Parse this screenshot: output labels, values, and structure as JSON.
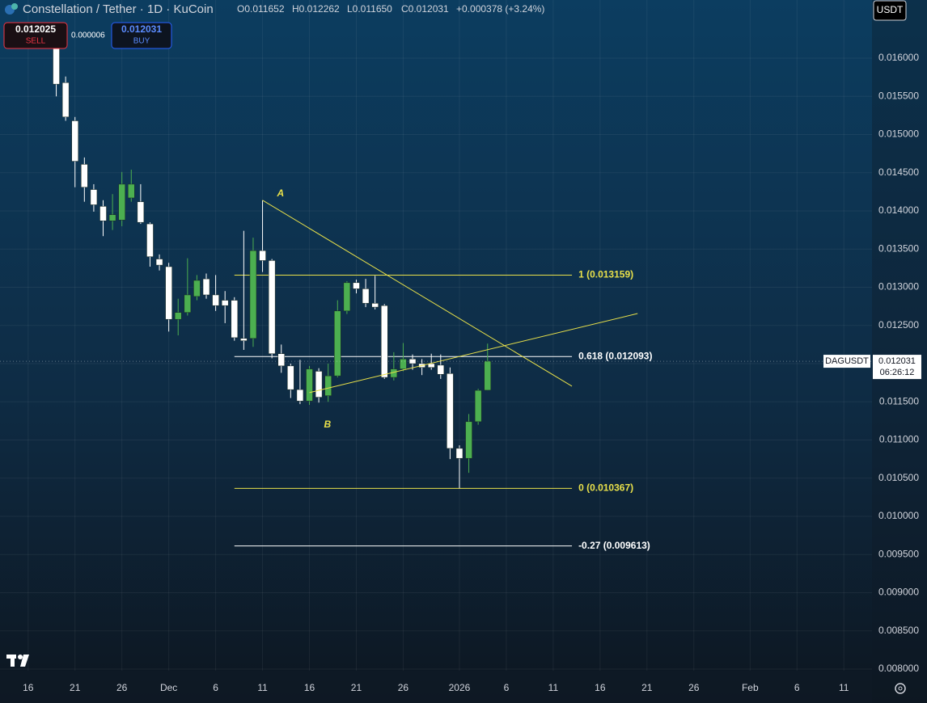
{
  "chart_data": {
    "type": "candlestick",
    "header": {
      "title": "Constellation / Tether · 1D · KuCoin",
      "open": "O0.011652",
      "high": "H0.012262",
      "low": "L0.011650",
      "close": "C0.012031",
      "change": "+0.000378 (+3.24%)"
    },
    "sell": {
      "value": 0.012025,
      "label": "0.012025",
      "text": "SELL"
    },
    "spread": {
      "value": 6e-06,
      "label": "0.000006"
    },
    "buy": {
      "value": 0.012031,
      "label": "0.012031",
      "text": "BUY"
    },
    "currency": "USDT",
    "symbol": "DAGUSDT",
    "last_price": {
      "value": 0.012031,
      "label": "0.012031"
    },
    "countdown": "06:26:12",
    "up_color": "#4caf50",
    "down_color": "#ffffff",
    "x": [
      "2025-11-19",
      "2025-11-20",
      "2025-11-21",
      "2025-11-22",
      "2025-11-23",
      "2025-11-24",
      "2025-11-25",
      "2025-11-26",
      "2025-11-27",
      "2025-11-28",
      "2025-11-29",
      "2025-11-30",
      "2025-12-01",
      "2025-12-02",
      "2025-12-03",
      "2025-12-04",
      "2025-12-05",
      "2025-12-06",
      "2025-12-07",
      "2025-12-08",
      "2025-12-09",
      "2025-12-10",
      "2025-12-11",
      "2025-12-12",
      "2025-12-13",
      "2025-12-14",
      "2025-12-15",
      "2025-12-16",
      "2025-12-17",
      "2025-12-18",
      "2025-12-19",
      "2025-12-20",
      "2025-12-21",
      "2025-12-22",
      "2025-12-23",
      "2025-12-24",
      "2025-12-25",
      "2025-12-26",
      "2025-12-27",
      "2025-12-28",
      "2025-12-29",
      "2025-12-30",
      "2025-12-31",
      "2026-01-01",
      "2026-01-02",
      "2026-01-03",
      "2026-01-04"
    ],
    "open": [
      0.01625,
      0.01568,
      0.01518,
      0.01461,
      0.01428,
      0.01406,
      0.01387,
      0.01388,
      0.01417,
      0.01412,
      0.01383,
      0.01337,
      0.01327,
      0.01258,
      0.01267,
      0.01288,
      0.01311,
      0.0129,
      0.01283,
      0.01283,
      0.01233,
      0.01233,
      0.01348,
      0.01335,
      0.01213,
      0.01197,
      0.01166,
      0.01151,
      0.0119,
      0.01158,
      0.01184,
      0.01269,
      0.01306,
      0.01298,
      0.01279,
      0.01276,
      0.01182,
      0.01193,
      0.01206,
      0.012,
      0.012,
      0.01198,
      0.01187,
      0.01089,
      0.01076,
      0.01124,
      0.011652
    ],
    "high": [
      0.0164,
      0.01576,
      0.01523,
      0.0147,
      0.01435,
      0.01414,
      0.01422,
      0.01451,
      0.01454,
      0.01435,
      0.01385,
      0.01343,
      0.01332,
      0.01285,
      0.01338,
      0.01316,
      0.01318,
      0.01316,
      0.01295,
      0.01287,
      0.01374,
      0.01365,
      0.01414,
      0.01337,
      0.01225,
      0.012,
      0.01205,
      0.01197,
      0.01194,
      0.012,
      0.01283,
      0.01308,
      0.0131,
      0.01311,
      0.01315,
      0.01278,
      0.01215,
      0.01227,
      0.01212,
      0.01206,
      0.01213,
      0.01212,
      0.01195,
      0.01093,
      0.01134,
      0.01167,
      0.012262
    ],
    "low": [
      0.0155,
      0.01518,
      0.01431,
      0.01412,
      0.01399,
      0.01367,
      0.01375,
      0.0138,
      0.01412,
      0.01383,
      0.01327,
      0.01322,
      0.01242,
      0.01237,
      0.01263,
      0.01283,
      0.01285,
      0.01269,
      0.01253,
      0.0123,
      0.01218,
      0.01222,
      0.0132,
      0.01207,
      0.01188,
      0.01155,
      0.01147,
      0.01146,
      0.01149,
      0.0115,
      0.01182,
      0.01265,
      0.01292,
      0.01274,
      0.01271,
      0.0118,
      0.01178,
      0.0119,
      0.01192,
      0.01185,
      0.01192,
      0.0118,
      0.01075,
      0.010367,
      0.01057,
      0.0112,
      0.01165
    ],
    "close": [
      0.01566,
      0.01523,
      0.01465,
      0.01431,
      0.01408,
      0.01387,
      0.01395,
      0.01435,
      0.01435,
      0.01385,
      0.0134,
      0.01329,
      0.01258,
      0.01267,
      0.0129,
      0.01309,
      0.0129,
      0.01276,
      0.01276,
      0.01234,
      0.0123,
      0.01348,
      0.01335,
      0.01213,
      0.01197,
      0.01166,
      0.01151,
      0.01193,
      0.01156,
      0.01184,
      0.01269,
      0.01306,
      0.01298,
      0.01279,
      0.01274,
      0.01182,
      0.01193,
      0.01206,
      0.012,
      0.01195,
      0.01195,
      0.01186,
      0.01089,
      0.01076,
      0.01124,
      0.01165,
      0.012031
    ],
    "fib": {
      "start": "2025-12-08",
      "end": "2026-01-13",
      "levels": [
        {
          "value": 0.013159,
          "label": "1 (0.013159)",
          "color": "#e8e04a"
        },
        {
          "value": 0.012093,
          "label": "0.618 (0.012093)",
          "color": "#ffffff"
        },
        {
          "value": 0.010367,
          "label": "0 (0.010367)",
          "color": "#e8e04a"
        },
        {
          "value": 0.009613,
          "label": "-0.27 (0.009613)",
          "color": "#ffffff"
        }
      ]
    },
    "trendlines": [
      {
        "name": "A",
        "start": [
          "2025-12-11",
          0.01414
        ],
        "end": [
          "2026-01-13",
          0.011704
        ],
        "color": "#e8e04a"
      },
      {
        "name": "B",
        "start": [
          "2025-12-16",
          0.01162
        ],
        "end": [
          "2026-01-20",
          0.012656
        ],
        "color": "#e8e04a"
      }
    ],
    "xlim": [
      "2025-11-13",
      "2026-02-14"
    ],
    "ylim": [
      0.007979,
      0.016762
    ],
    "xticks": [
      {
        "value": "2025-11-16",
        "label": "16"
      },
      {
        "value": "2025-11-21",
        "label": "21"
      },
      {
        "value": "2025-11-26",
        "label": "26"
      },
      {
        "value": "2025-12-01",
        "label": "Dec"
      },
      {
        "value": "2025-12-06",
        "label": "6"
      },
      {
        "value": "2025-12-11",
        "label": "11"
      },
      {
        "value": "2025-12-16",
        "label": "16"
      },
      {
        "value": "2025-12-21",
        "label": "21"
      },
      {
        "value": "2025-12-26",
        "label": "26"
      },
      {
        "value": "2026-01-01",
        "label": "2026"
      },
      {
        "value": "2026-01-06",
        "label": "6"
      },
      {
        "value": "2026-01-11",
        "label": "11"
      },
      {
        "value": "2026-01-16",
        "label": "16"
      },
      {
        "value": "2026-01-21",
        "label": "21"
      },
      {
        "value": "2026-01-26",
        "label": "26"
      },
      {
        "value": "2026-02-01",
        "label": "Feb"
      },
      {
        "value": "2026-02-06",
        "label": "6"
      },
      {
        "value": "2026-02-11",
        "label": "11"
      }
    ],
    "yticks": [
      {
        "value": 0.016,
        "label": "0.016000"
      },
      {
        "value": 0.0155,
        "label": "0.015500"
      },
      {
        "value": 0.015,
        "label": "0.015000"
      },
      {
        "value": 0.0145,
        "label": "0.014500"
      },
      {
        "value": 0.014,
        "label": "0.014000"
      },
      {
        "value": 0.0135,
        "label": "0.013500"
      },
      {
        "value": 0.013,
        "label": "0.013000"
      },
      {
        "value": 0.0125,
        "label": "0.012500"
      },
      {
        "value": 0.012,
        "label": "0.012000"
      },
      {
        "value": 0.0115,
        "label": "0.011500"
      },
      {
        "value": 0.011,
        "label": "0.011000"
      },
      {
        "value": 0.0105,
        "label": "0.010500"
      },
      {
        "value": 0.01,
        "label": "0.010000"
      },
      {
        "value": 0.0095,
        "label": "0.009500"
      },
      {
        "value": 0.009,
        "label": "0.009000"
      },
      {
        "value": 0.0085,
        "label": "0.008500"
      },
      {
        "value": 0.008,
        "label": "0.008000"
      }
    ],
    "grid": true
  }
}
